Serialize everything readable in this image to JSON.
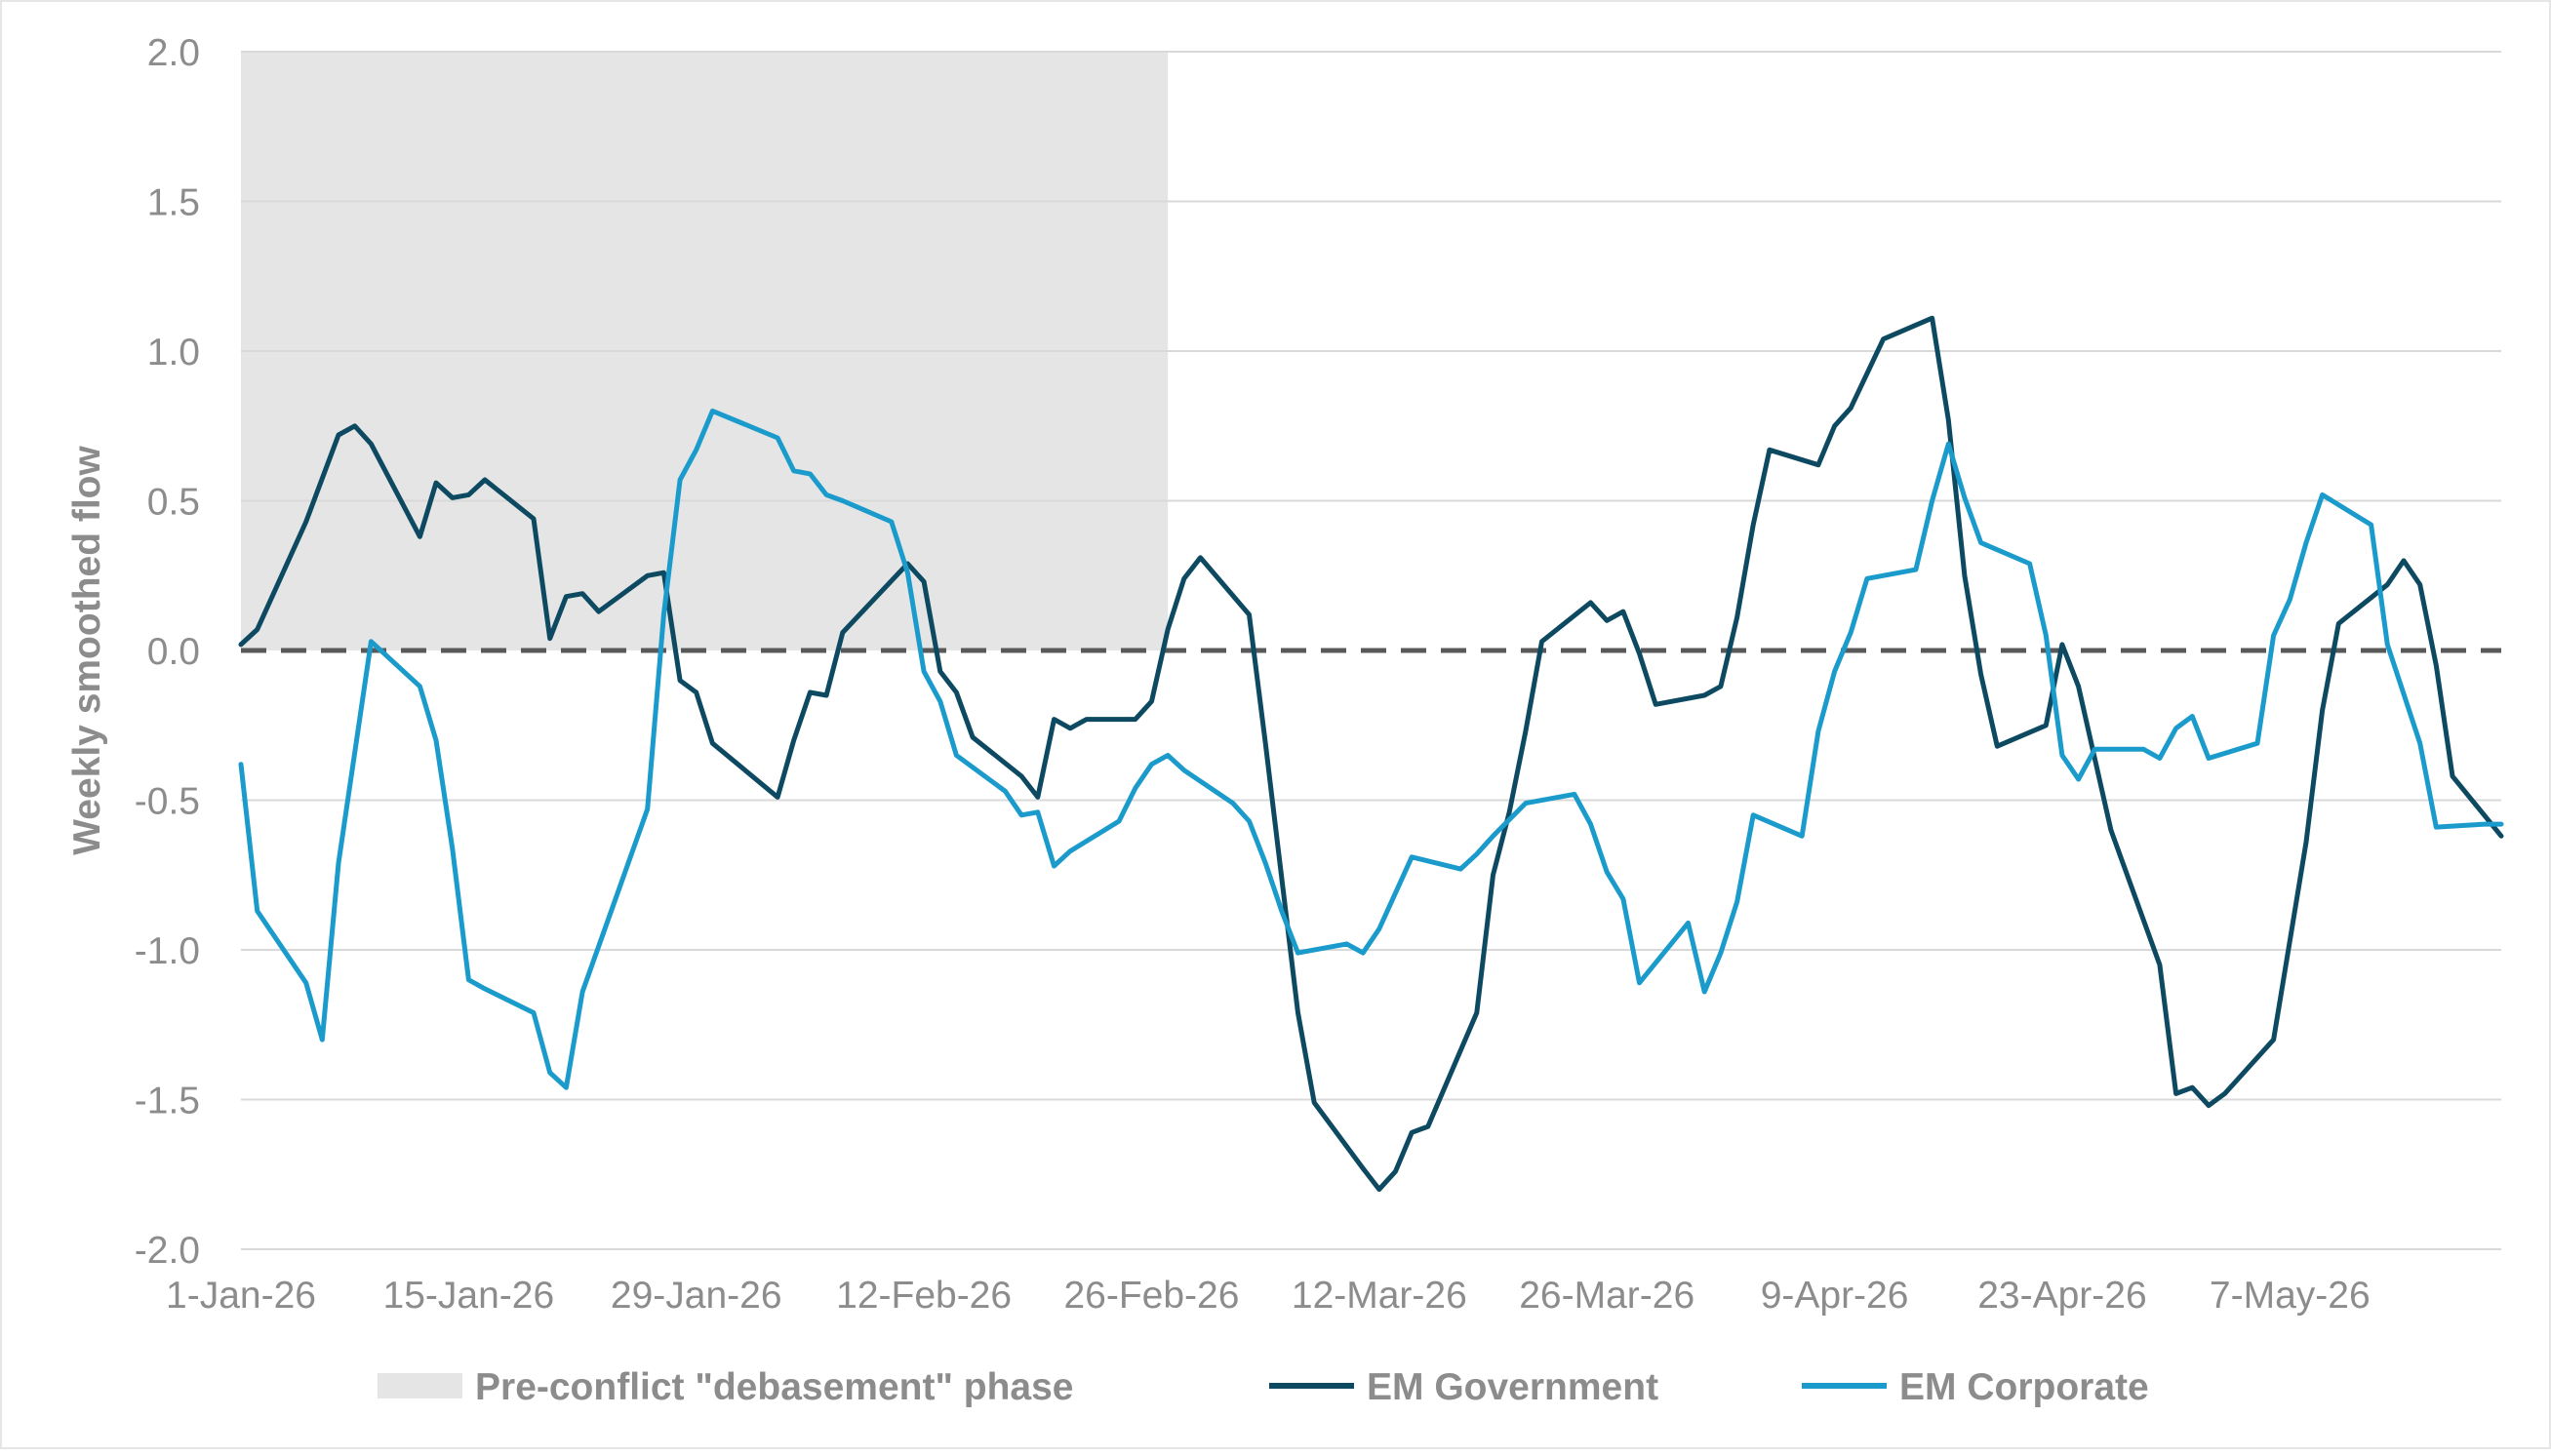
{
  "chart_data": {
    "type": "line",
    "title": "",
    "xlabel": "",
    "ylabel": "Weekly smoothed flow",
    "ylim": [
      -2.0,
      2.0
    ],
    "yticks": [
      "2.0",
      "1.5",
      "1.0",
      "0.5",
      "0.0",
      "-0.5",
      "-1.0",
      "-1.5",
      "-2.0"
    ],
    "x_start": "1-Jan-26",
    "x_end": "20-May-26",
    "xticks": [
      "1-Jan-26",
      "15-Jan-26",
      "29-Jan-26",
      "12-Feb-26",
      "26-Feb-26",
      "12-Mar-26",
      "26-Mar-26",
      "9-Apr-26",
      "23-Apr-26",
      "7-May-26"
    ],
    "grid": "horizontal",
    "zero_line": "dashed",
    "shaded_region": {
      "label": "Pre-conflict \"debasement\" phase",
      "start": "1-Jan-26",
      "end": "27-Feb-26",
      "color": "#e5e5e5"
    },
    "series": [
      {
        "name": "EM Government",
        "color": "#0d4a61",
        "points": [
          [
            "1-Jan-26",
            0.02
          ],
          [
            "2-Jan-26",
            0.07
          ],
          [
            "5-Jan-26",
            0.43
          ],
          [
            "7-Jan-26",
            0.72
          ],
          [
            "8-Jan-26",
            0.75
          ],
          [
            "9-Jan-26",
            0.69
          ],
          [
            "12-Jan-26",
            0.38
          ],
          [
            "13-Jan-26",
            0.56
          ],
          [
            "14-Jan-26",
            0.51
          ],
          [
            "15-Jan-26",
            0.52
          ],
          [
            "16-Jan-26",
            0.57
          ],
          [
            "19-Jan-26",
            0.44
          ],
          [
            "20-Jan-26",
            0.04
          ],
          [
            "21-Jan-26",
            0.18
          ],
          [
            "22-Jan-26",
            0.19
          ],
          [
            "23-Jan-26",
            0.13
          ],
          [
            "26-Jan-26",
            0.25
          ],
          [
            "27-Jan-26",
            0.26
          ],
          [
            "28-Jan-26",
            -0.1
          ],
          [
            "29-Jan-26",
            -0.14
          ],
          [
            "30-Jan-26",
            -0.31
          ],
          [
            "3-Feb-26",
            -0.49
          ],
          [
            "4-Feb-26",
            -0.3
          ],
          [
            "5-Feb-26",
            -0.14
          ],
          [
            "6-Feb-26",
            -0.15
          ],
          [
            "7-Feb-26",
            0.06
          ],
          [
            "11-Feb-26",
            0.29
          ],
          [
            "12-Feb-26",
            0.23
          ],
          [
            "13-Feb-26",
            -0.07
          ],
          [
            "14-Feb-26",
            -0.14
          ],
          [
            "15-Feb-26",
            -0.29
          ],
          [
            "18-Feb-26",
            -0.42
          ],
          [
            "19-Feb-26",
            -0.49
          ],
          [
            "20-Feb-26",
            -0.23
          ],
          [
            "21-Feb-26",
            -0.26
          ],
          [
            "22-Feb-26",
            -0.23
          ],
          [
            "25-Feb-26",
            -0.23
          ],
          [
            "26-Feb-26",
            -0.17
          ],
          [
            "27-Feb-26",
            0.07
          ],
          [
            "28-Feb-26",
            0.24
          ],
          [
            "1-Mar-26",
            0.31
          ],
          [
            "4-Mar-26",
            0.12
          ],
          [
            "5-Mar-26",
            -0.31
          ],
          [
            "7-Mar-26",
            -1.21
          ],
          [
            "8-Mar-26",
            -1.51
          ],
          [
            "11-Mar-26",
            -1.73
          ],
          [
            "12-Mar-26",
            -1.8
          ],
          [
            "13-Mar-26",
            -1.74
          ],
          [
            "14-Mar-26",
            -1.61
          ],
          [
            "15-Mar-26",
            -1.59
          ],
          [
            "18-Mar-26",
            -1.21
          ],
          [
            "19-Mar-26",
            -0.75
          ],
          [
            "20-Mar-26",
            -0.54
          ],
          [
            "21-Mar-26",
            -0.27
          ],
          [
            "22-Mar-26",
            0.03
          ],
          [
            "25-Mar-26",
            0.16
          ],
          [
            "26-Mar-26",
            0.1
          ],
          [
            "27-Mar-26",
            0.13
          ],
          [
            "28-Mar-26",
            -0.01
          ],
          [
            "29-Mar-26",
            -0.18
          ],
          [
            "1-Apr-26",
            -0.15
          ],
          [
            "2-Apr-26",
            -0.12
          ],
          [
            "3-Apr-26",
            0.11
          ],
          [
            "4-Apr-26",
            0.42
          ],
          [
            "5-Apr-26",
            0.67
          ],
          [
            "8-Apr-26",
            0.62
          ],
          [
            "9-Apr-26",
            0.75
          ],
          [
            "10-Apr-26",
            0.81
          ],
          [
            "12-Apr-26",
            1.04
          ],
          [
            "15-Apr-26",
            1.11
          ],
          [
            "16-Apr-26",
            0.77
          ],
          [
            "17-Apr-26",
            0.25
          ],
          [
            "18-Apr-26",
            -0.08
          ],
          [
            "19-Apr-26",
            -0.32
          ],
          [
            "22-Apr-26",
            -0.25
          ],
          [
            "23-Apr-26",
            0.02
          ],
          [
            "24-Apr-26",
            -0.12
          ],
          [
            "26-Apr-26",
            -0.6
          ],
          [
            "29-Apr-26",
            -1.05
          ],
          [
            "30-Apr-26",
            -1.48
          ],
          [
            "1-May-26",
            -1.46
          ],
          [
            "2-May-26",
            -1.52
          ],
          [
            "3-May-26",
            -1.48
          ],
          [
            "6-May-26",
            -1.3
          ],
          [
            "8-May-26",
            -0.64
          ],
          [
            "9-May-26",
            -0.2
          ],
          [
            "10-May-26",
            0.09
          ],
          [
            "13-May-26",
            0.22
          ],
          [
            "14-May-26",
            0.3
          ],
          [
            "15-May-26",
            0.22
          ],
          [
            "16-May-26",
            -0.05
          ],
          [
            "17-May-26",
            -0.42
          ],
          [
            "20-May-26",
            -0.62
          ]
        ]
      },
      {
        "name": "EM Corporate",
        "color": "#1a9bcb",
        "points": [
          [
            "1-Jan-26",
            -0.38
          ],
          [
            "2-Jan-26",
            -0.87
          ],
          [
            "5-Jan-26",
            -1.11
          ],
          [
            "6-Jan-26",
            -1.3
          ],
          [
            "7-Jan-26",
            -0.71
          ],
          [
            "9-Jan-26",
            0.03
          ],
          [
            "12-Jan-26",
            -0.12
          ],
          [
            "13-Jan-26",
            -0.3
          ],
          [
            "14-Jan-26",
            -0.66
          ],
          [
            "15-Jan-26",
            -1.1
          ],
          [
            "16-Jan-26",
            -1.13
          ],
          [
            "19-Jan-26",
            -1.21
          ],
          [
            "20-Jan-26",
            -1.41
          ],
          [
            "21-Jan-26",
            -1.46
          ],
          [
            "22-Jan-26",
            -1.14
          ],
          [
            "26-Jan-26",
            -0.53
          ],
          [
            "27-Jan-26",
            0.12
          ],
          [
            "28-Jan-26",
            0.57
          ],
          [
            "29-Jan-26",
            0.67
          ],
          [
            "30-Jan-26",
            0.8
          ],
          [
            "3-Feb-26",
            0.71
          ],
          [
            "4-Feb-26",
            0.6
          ],
          [
            "5-Feb-26",
            0.59
          ],
          [
            "6-Feb-26",
            0.52
          ],
          [
            "7-Feb-26",
            0.5
          ],
          [
            "10-Feb-26",
            0.43
          ],
          [
            "11-Feb-26",
            0.26
          ],
          [
            "12-Feb-26",
            -0.07
          ],
          [
            "13-Feb-26",
            -0.17
          ],
          [
            "14-Feb-26",
            -0.35
          ],
          [
            "17-Feb-26",
            -0.47
          ],
          [
            "18-Feb-26",
            -0.55
          ],
          [
            "19-Feb-26",
            -0.54
          ],
          [
            "20-Feb-26",
            -0.72
          ],
          [
            "21-Feb-26",
            -0.67
          ],
          [
            "24-Feb-26",
            -0.57
          ],
          [
            "25-Feb-26",
            -0.46
          ],
          [
            "26-Feb-26",
            -0.38
          ],
          [
            "27-Feb-26",
            -0.35
          ],
          [
            "28-Feb-26",
            -0.4
          ],
          [
            "3-Mar-26",
            -0.51
          ],
          [
            "4-Mar-26",
            -0.57
          ],
          [
            "5-Mar-26",
            -0.71
          ],
          [
            "6-Mar-26",
            -0.87
          ],
          [
            "7-Mar-26",
            -1.01
          ],
          [
            "10-Mar-26",
            -0.98
          ],
          [
            "11-Mar-26",
            -1.01
          ],
          [
            "12-Mar-26",
            -0.93
          ],
          [
            "14-Mar-26",
            -0.69
          ],
          [
            "17-Mar-26",
            -0.73
          ],
          [
            "18-Mar-26",
            -0.68
          ],
          [
            "19-Mar-26",
            -0.62
          ],
          [
            "21-Mar-26",
            -0.51
          ],
          [
            "24-Mar-26",
            -0.48
          ],
          [
            "25-Mar-26",
            -0.58
          ],
          [
            "26-Mar-26",
            -0.74
          ],
          [
            "27-Mar-26",
            -0.83
          ],
          [
            "28-Mar-26",
            -1.11
          ],
          [
            "31-Mar-26",
            -0.91
          ],
          [
            "1-Apr-26",
            -1.14
          ],
          [
            "2-Apr-26",
            -1.01
          ],
          [
            "3-Apr-26",
            -0.84
          ],
          [
            "4-Apr-26",
            -0.55
          ],
          [
            "7-Apr-26",
            -0.62
          ],
          [
            "8-Apr-26",
            -0.27
          ],
          [
            "9-Apr-26",
            -0.07
          ],
          [
            "10-Apr-26",
            0.06
          ],
          [
            "11-Apr-26",
            0.24
          ],
          [
            "14-Apr-26",
            0.27
          ],
          [
            "15-Apr-26",
            0.5
          ],
          [
            "16-Apr-26",
            0.69
          ],
          [
            "17-Apr-26",
            0.51
          ],
          [
            "18-Apr-26",
            0.36
          ],
          [
            "21-Apr-26",
            0.29
          ],
          [
            "22-Apr-26",
            0.05
          ],
          [
            "23-Apr-26",
            -0.35
          ],
          [
            "24-Apr-26",
            -0.43
          ],
          [
            "25-Apr-26",
            -0.33
          ],
          [
            "28-Apr-26",
            -0.33
          ],
          [
            "29-Apr-26",
            -0.36
          ],
          [
            "30-Apr-26",
            -0.26
          ],
          [
            "1-May-26",
            -0.22
          ],
          [
            "2-May-26",
            -0.36
          ],
          [
            "5-May-26",
            -0.31
          ],
          [
            "6-May-26",
            0.05
          ],
          [
            "7-May-26",
            0.17
          ],
          [
            "8-May-26",
            0.36
          ],
          [
            "9-May-26",
            0.52
          ],
          [
            "12-May-26",
            0.42
          ],
          [
            "13-May-26",
            0.02
          ],
          [
            "15-May-26",
            -0.31
          ],
          [
            "16-May-26",
            -0.59
          ],
          [
            "19-May-26",
            -0.58
          ],
          [
            "20-May-26",
            -0.58
          ]
        ]
      }
    ],
    "legend": {
      "position": "bottom",
      "items": [
        {
          "label": "Pre-conflict \"debasement\" phase",
          "kind": "area",
          "color": "#e5e5e5"
        },
        {
          "label": "EM Government",
          "kind": "line",
          "color": "#0d4a61"
        },
        {
          "label": "EM Corporate",
          "kind": "line",
          "color": "#1a9bcb"
        }
      ]
    }
  }
}
